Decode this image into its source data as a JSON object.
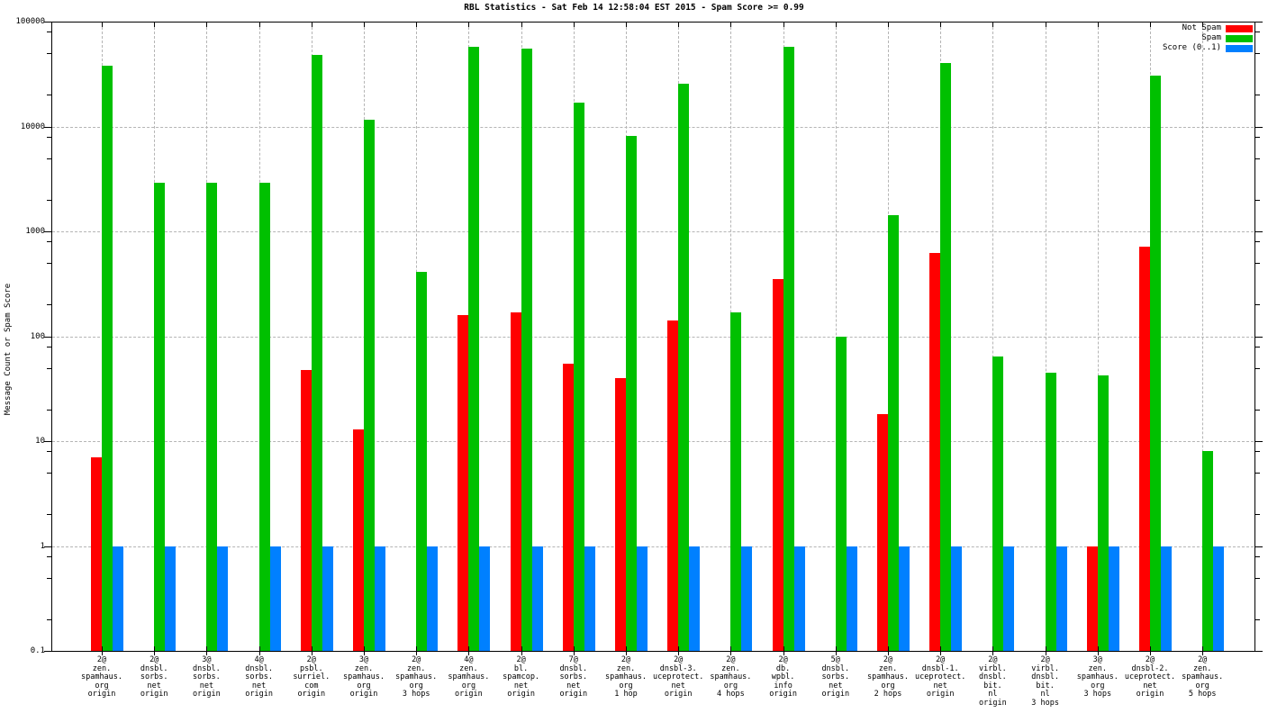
{
  "title": "RBL Statistics - Sat Feb 14 12:58:04 EST 2015 - Spam Score >= 0.99",
  "colors": {
    "not_spam": "#ff0000",
    "spam": "#00c000",
    "score": "#0080ff",
    "grid": "#b5b5b5",
    "axis": "#000000",
    "background": "#ffffff"
  },
  "chart_data": {
    "type": "bar",
    "title": "RBL Statistics - Sat Feb 14 12:58:04 EST 2015 - Spam Score >= 0.99",
    "xlabel": "",
    "ylabel": "Message Count or Spam Score",
    "y_scale": "log10",
    "ylim": [
      0.1,
      100000
    ],
    "grid": true,
    "legend_position": "top-right",
    "y_ticks": [
      {
        "label": "100000",
        "value": 100000
      },
      {
        "label": "10000",
        "value": 10000
      },
      {
        "label": "1000",
        "value": 1000
      },
      {
        "label": "100",
        "value": 100
      },
      {
        "label": "10",
        "value": 10
      },
      {
        "label": "1",
        "value": 1
      },
      {
        "label": "0.1",
        "value": 0.1
      }
    ],
    "legend": {
      "entries": [
        {
          "label": "Not Spam",
          "color_key": "not_spam"
        },
        {
          "label": "Spam",
          "color_key": "spam"
        },
        {
          "label": "Score (0..1)",
          "color_key": "score"
        }
      ]
    },
    "categories": [
      {
        "lines": [
          "2@",
          "zen.",
          "spamhaus.",
          "org",
          "origin"
        ]
      },
      {
        "lines": [
          "2@",
          "dnsbl.",
          "sorbs.",
          "net",
          "origin"
        ]
      },
      {
        "lines": [
          "3@",
          "dnsbl.",
          "sorbs.",
          "net",
          "origin"
        ]
      },
      {
        "lines": [
          "4@",
          "dnsbl.",
          "sorbs.",
          "net",
          "origin"
        ]
      },
      {
        "lines": [
          "2@",
          "psbl.",
          "surriel.",
          "com",
          "origin"
        ]
      },
      {
        "lines": [
          "3@",
          "zen.",
          "spamhaus.",
          "org",
          "origin"
        ]
      },
      {
        "lines": [
          "2@",
          "zen.",
          "spamhaus.",
          "org",
          "3 hops"
        ]
      },
      {
        "lines": [
          "4@",
          "zen.",
          "spamhaus.",
          "org",
          "origin"
        ]
      },
      {
        "lines": [
          "2@",
          "bl.",
          "spamcop.",
          "net",
          "origin"
        ]
      },
      {
        "lines": [
          "7@",
          "dnsbl.",
          "sorbs.",
          "net",
          "origin"
        ]
      },
      {
        "lines": [
          "2@",
          "zen.",
          "spamhaus.",
          "org",
          "1 hop"
        ]
      },
      {
        "lines": [
          "2@",
          "dnsbl-3.",
          "uceprotect.",
          "net",
          "origin"
        ]
      },
      {
        "lines": [
          "2@",
          "zen.",
          "spamhaus.",
          "org",
          "4 hops"
        ]
      },
      {
        "lines": [
          "2@",
          "db.",
          "wpbl.",
          "info",
          "origin"
        ]
      },
      {
        "lines": [
          "5@",
          "dnsbl.",
          "sorbs.",
          "net",
          "origin"
        ]
      },
      {
        "lines": [
          "2@",
          "zen.",
          "spamhaus.",
          "org",
          "2 hops"
        ]
      },
      {
        "lines": [
          "2@",
          "dnsbl-1.",
          "uceprotect.",
          "net",
          "origin"
        ]
      },
      {
        "lines": [
          "2@",
          "virbl.",
          "dnsbl.",
          "bit.",
          "nl",
          "origin"
        ]
      },
      {
        "lines": [
          "2@",
          "virbl.",
          "dnsbl.",
          "bit.",
          "nl",
          "3 hops"
        ]
      },
      {
        "lines": [
          "3@",
          "zen.",
          "spamhaus.",
          "org",
          "3 hops"
        ]
      },
      {
        "lines": [
          "2@",
          "dnsbl-2.",
          "uceprotect.",
          "net",
          "origin"
        ]
      },
      {
        "lines": [
          "2@",
          "zen.",
          "spamhaus.",
          "org",
          "5 hops"
        ]
      }
    ],
    "series": [
      {
        "name": "Not Spam",
        "color_key": "not_spam",
        "values": [
          7,
          null,
          null,
          null,
          48,
          13,
          null,
          160,
          170,
          55,
          40,
          140,
          null,
          350,
          null,
          18,
          620,
          null,
          null,
          1,
          720,
          null
        ]
      },
      {
        "name": "Spam",
        "color_key": "spam",
        "values": [
          38000,
          2900,
          2900,
          2900,
          48000,
          11500,
          410,
          57000,
          55000,
          17000,
          8100,
          25500,
          170,
          57000,
          100,
          1440,
          40000,
          64,
          45,
          42,
          30500,
          8
        ]
      },
      {
        "name": "Score (0..1)",
        "color_key": "score",
        "values": [
          1,
          1,
          1,
          1,
          1,
          1,
          1,
          1,
          1,
          1,
          1,
          1,
          1,
          1,
          1,
          1,
          1,
          1,
          1,
          1,
          1,
          1
        ]
      }
    ]
  }
}
